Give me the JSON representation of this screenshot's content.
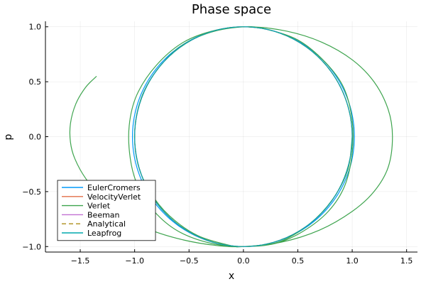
{
  "chart_data": {
    "type": "line",
    "title": "Phase space",
    "xlabel": "x",
    "ylabel": "p",
    "xlim": [
      -1.82,
      1.6
    ],
    "ylim": [
      -1.05,
      1.05
    ],
    "xticks": [
      -1.5,
      -1.0,
      -0.5,
      0.0,
      0.5,
      1.0,
      1.5
    ],
    "xtick_labels": [
      "−1.5",
      "−1.0",
      "−0.5",
      "0.0",
      "0.5",
      "1.0",
      "1.5"
    ],
    "yticks": [
      -1.0,
      -0.5,
      0.0,
      0.5,
      1.0
    ],
    "ytick_labels": [
      "−1.0",
      "−0.5",
      "0.0",
      "0.5",
      "1.0"
    ],
    "grid": true,
    "legend_position": "bottom-left",
    "series": [
      {
        "name": "EulerCromers",
        "color": "#009AFA",
        "dash": "solid",
        "shape": "ellipse",
        "cx": 0.0,
        "cy": 0.0,
        "rx": 1.02,
        "ry": 1.0
      },
      {
        "name": "VelocityVerlet",
        "color": "#E36F47",
        "dash": "solid",
        "shape": "ellipse",
        "cx": 0.0,
        "cy": 0.0,
        "rx": 1.0,
        "ry": 1.0
      },
      {
        "name": "Verlet",
        "color": "#3EA44E",
        "dash": "solid",
        "shape": "points",
        "points": [
          [
            -1.35,
            0.55
          ],
          [
            -1.45,
            0.45
          ],
          [
            -1.54,
            0.3
          ],
          [
            -1.59,
            0.12
          ],
          [
            -1.59,
            -0.05
          ],
          [
            -1.55,
            -0.2
          ],
          [
            -1.45,
            -0.38
          ],
          [
            -1.3,
            -0.55
          ],
          [
            -1.1,
            -0.72
          ],
          [
            -0.85,
            -0.85
          ],
          [
            -0.55,
            -0.94
          ],
          [
            -0.25,
            -0.99
          ],
          [
            0.0,
            -1.0
          ],
          [
            0.35,
            -0.96
          ],
          [
            0.7,
            -0.85
          ],
          [
            1.0,
            -0.68
          ],
          [
            1.2,
            -0.5
          ],
          [
            1.33,
            -0.28
          ],
          [
            1.37,
            0.0
          ],
          [
            1.33,
            0.25
          ],
          [
            1.2,
            0.5
          ],
          [
            1.0,
            0.7
          ],
          [
            0.72,
            0.86
          ],
          [
            0.4,
            0.96
          ],
          [
            0.05,
            1.0
          ],
          [
            -0.25,
            0.97
          ],
          [
            -0.55,
            0.86
          ],
          [
            -0.8,
            0.65
          ],
          [
            -0.98,
            0.38
          ],
          [
            -1.05,
            0.1
          ],
          [
            -1.04,
            -0.2
          ],
          [
            -0.97,
            -0.45
          ],
          [
            -0.82,
            -0.68
          ],
          [
            -0.6,
            -0.86
          ],
          [
            -0.3,
            -0.97
          ],
          [
            0.0,
            -1.0
          ],
          [
            0.3,
            -0.97
          ],
          [
            0.55,
            -0.86
          ],
          [
            0.78,
            -0.68
          ],
          [
            0.93,
            -0.45
          ],
          [
            1.0,
            -0.15
          ],
          [
            1.0,
            0.15
          ],
          [
            0.92,
            0.45
          ],
          [
            0.75,
            0.68
          ],
          [
            0.5,
            0.88
          ],
          [
            0.2,
            0.98
          ],
          [
            0.0,
            1.0
          ],
          [
            -0.3,
            0.95
          ],
          [
            -0.58,
            0.82
          ],
          [
            -0.8,
            0.6
          ],
          [
            -0.94,
            0.35
          ],
          [
            -1.0,
            0.05
          ],
          [
            -0.97,
            -0.25
          ],
          [
            -0.86,
            -0.5
          ],
          [
            -0.68,
            -0.72
          ],
          [
            -0.42,
            -0.9
          ],
          [
            -0.12,
            -0.99
          ],
          [
            0.0,
            -1.0
          ],
          [
            0.32,
            -0.96
          ],
          [
            0.6,
            -0.8
          ],
          [
            0.82,
            -0.57
          ],
          [
            0.96,
            -0.3
          ],
          [
            1.0,
            0.0
          ]
        ]
      },
      {
        "name": "Beeman",
        "color": "#C271D2",
        "dash": "solid",
        "shape": "ellipse",
        "cx": 0.0,
        "cy": 0.0,
        "rx": 1.0,
        "ry": 1.0
      },
      {
        "name": "Analytical",
        "color": "#AC8D18",
        "dash": "dashed",
        "shape": "ellipse",
        "cx": 0.0,
        "cy": 0.0,
        "rx": 1.0,
        "ry": 1.0
      },
      {
        "name": "Leapfrog",
        "color": "#00A9AD",
        "dash": "solid",
        "shape": "ellipse",
        "cx": 0.0,
        "cy": 0.0,
        "rx": 1.0,
        "ry": 1.0
      }
    ]
  }
}
